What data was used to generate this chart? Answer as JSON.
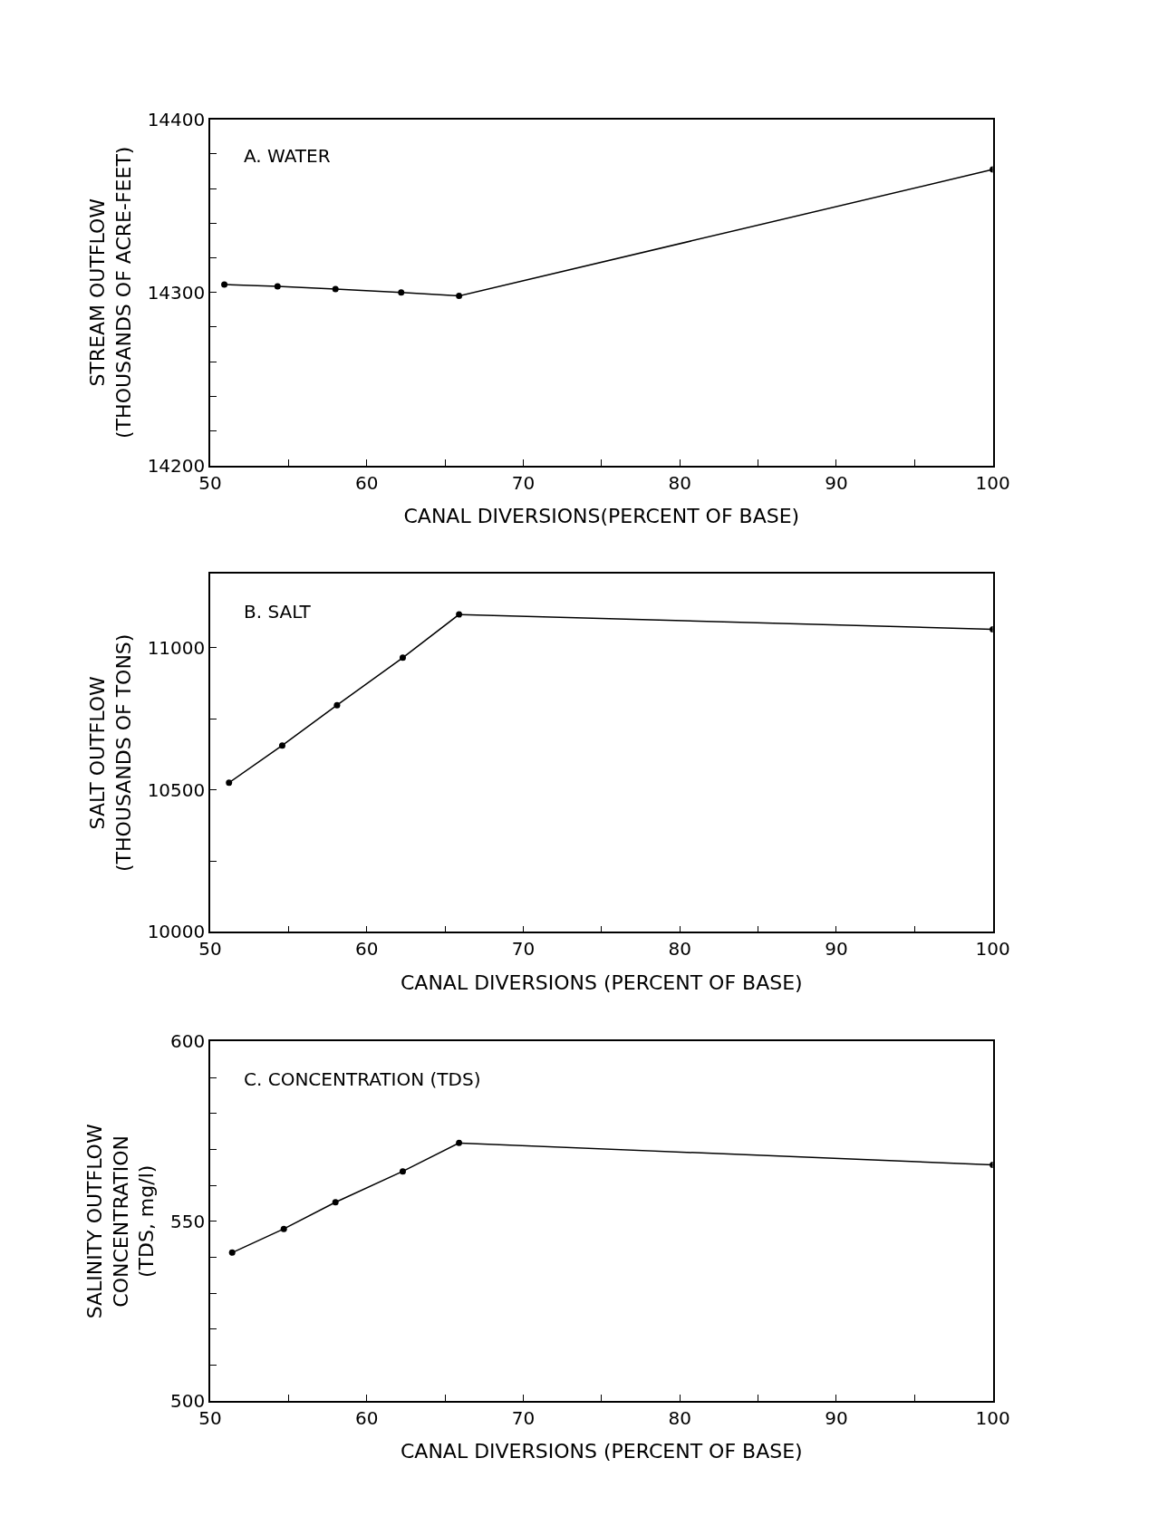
{
  "chart_data": [
    {
      "type": "line",
      "title": "A. WATER",
      "xlabel": "CANAL DIVERSIONS(PERCENT OF BASE)",
      "ylabel": "STREAM OUTFLOW\n(THOUSANDS OF ACRE-FEET)",
      "x": [
        50.9,
        54.3,
        58.0,
        62.2,
        65.9,
        100
      ],
      "series": [
        {
          "color": "#000000",
          "values": [
            14304.6,
            14303.6,
            14302,
            14300,
            14298,
            14371
          ]
        }
      ],
      "xlim": [
        50,
        100
      ],
      "xticks": [
        50,
        {
          "value": 55,
          "label": null
        },
        60,
        {
          "value": 65,
          "label": null
        },
        70,
        {
          "value": 75,
          "label": null
        },
        80,
        {
          "value": 85,
          "label": null
        },
        90,
        {
          "value": 95,
          "label": null
        },
        100
      ],
      "ylim": [
        14200,
        14400
      ],
      "yticks": [
        14200,
        {
          "value": 14220,
          "label": null
        },
        {
          "value": 14240,
          "label": null
        },
        {
          "value": 14260,
          "label": null
        },
        {
          "value": 14280,
          "label": null
        },
        14300,
        {
          "value": 14320,
          "label": null
        },
        {
          "value": 14340,
          "label": null
        },
        {
          "value": 14360,
          "label": null
        },
        {
          "value": 14380,
          "label": null
        },
        14400
      ],
      "marker": "circle",
      "line_style": "solid"
    },
    {
      "type": "line",
      "title": "B. SALT",
      "xlabel": "CANAL DIVERSIONS (PERCENT OF BASE)",
      "ylabel": "SALT OUTFLOW\n(THOUSANDS OF TONS)",
      "x": [
        51.2,
        54.6,
        58.1,
        62.3,
        65.9,
        100
      ],
      "series": [
        {
          "color": "#000000",
          "values": [
            10525,
            10656,
            10798,
            10965,
            11117,
            11065
          ]
        }
      ],
      "xlim": [
        50,
        100
      ],
      "xticks": [
        50,
        {
          "value": 55,
          "label": null
        },
        60,
        {
          "value": 65,
          "label": null
        },
        70,
        {
          "value": 75,
          "label": null
        },
        80,
        {
          "value": 85,
          "label": null
        },
        90,
        {
          "value": 95,
          "label": null
        },
        100
      ],
      "ylim": [
        10000,
        11260
      ],
      "yticks": [
        10000,
        {
          "value": 10250,
          "label": null
        },
        10500,
        {
          "value": 10750,
          "label": null
        },
        11000
      ],
      "marker": "circle",
      "line_style": "solid"
    },
    {
      "type": "line",
      "title": "C. CONCENTRATION (TDS)",
      "xlabel": "CANAL DIVERSIONS (PERCENT OF BASE)",
      "ylabel": "SALINITY OUTFLOW\nCONCENTRATION\n(TDS, mg/l)",
      "x": [
        51.4,
        54.7,
        58.0,
        62.3,
        65.9,
        100
      ],
      "series": [
        {
          "color": "#000000",
          "values": [
            541.3,
            547.9,
            555.3,
            563.9,
            571.8,
            565.7
          ]
        }
      ],
      "xlim": [
        50,
        100
      ],
      "xticks": [
        50,
        {
          "value": 55,
          "label": null
        },
        60,
        {
          "value": 65,
          "label": null
        },
        70,
        {
          "value": 75,
          "label": null
        },
        80,
        {
          "value": 85,
          "label": null
        },
        90,
        {
          "value": 95,
          "label": null
        },
        100
      ],
      "ylim": [
        500,
        600
      ],
      "yticks": [
        500,
        {
          "value": 510,
          "label": null
        },
        {
          "value": 520,
          "label": null
        },
        {
          "value": 530,
          "label": null
        },
        {
          "value": 540,
          "label": null
        },
        550,
        {
          "value": 560,
          "label": null
        },
        {
          "value": 570,
          "label": null
        },
        {
          "value": 580,
          "label": null
        },
        {
          "value": 590,
          "label": null
        },
        600
      ],
      "marker": "circle",
      "line_style": "solid"
    }
  ]
}
